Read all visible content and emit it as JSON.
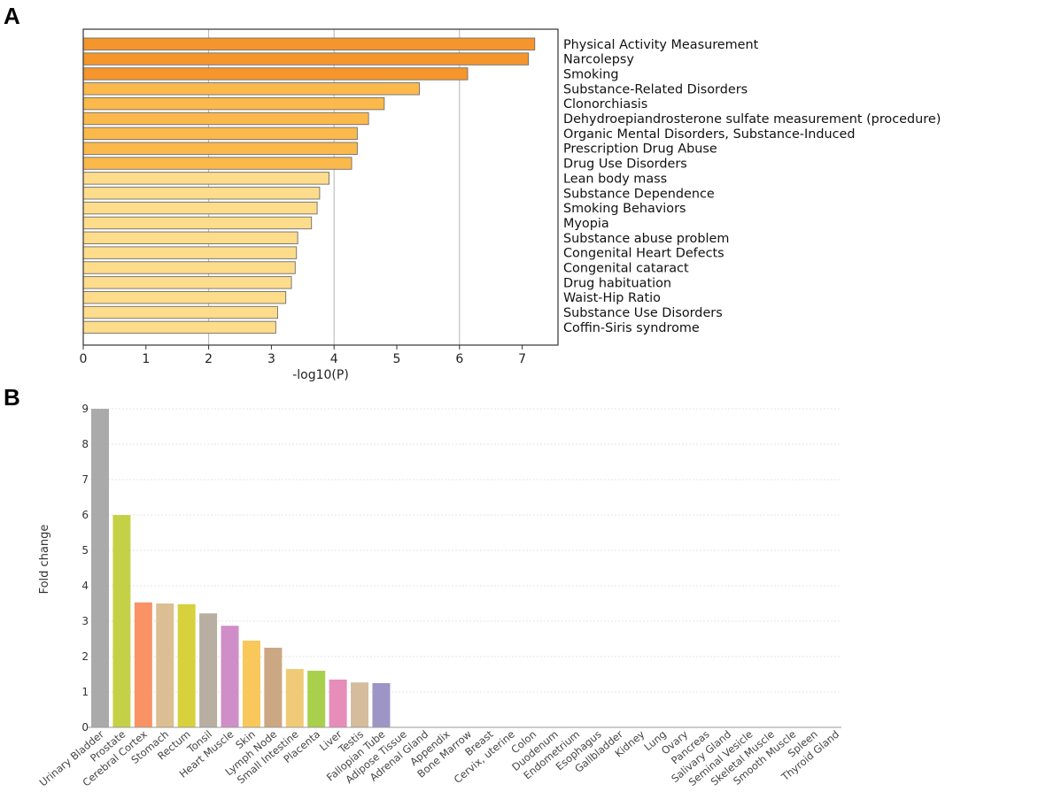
{
  "panels": {
    "a_label": "A",
    "b_label": "B"
  },
  "chart_data": [
    {
      "type": "bar",
      "orientation": "horizontal",
      "xlabel": "-log10(P)",
      "xlim": [
        0,
        7.5
      ],
      "xticks": [
        0,
        1,
        2,
        3,
        4,
        5,
        6,
        7
      ],
      "gridlines_at": [
        2,
        4,
        6
      ],
      "categories": [
        "Physical Activity Measurement",
        "Narcolepsy",
        "Smoking",
        "Substance-Related Disorders",
        "Clonorchiasis",
        "Dehydroepiandrosterone sulfate measurement (procedure)",
        "Organic Mental Disorders, Substance-Induced",
        "Prescription Drug Abuse",
        "Drug Use Disorders",
        "Lean body mass",
        "Substance Dependence",
        "Smoking Behaviors",
        "Myopia",
        "Substance abuse problem",
        "Congenital Heart Defects",
        "Congenital cataract",
        "Drug habituation",
        "Waist-Hip Ratio",
        "Substance Use Disorders",
        "Coffin-Siris syndrome"
      ],
      "values": [
        7.2,
        7.1,
        6.13,
        5.36,
        4.8,
        4.55,
        4.37,
        4.37,
        4.28,
        3.92,
        3.77,
        3.73,
        3.64,
        3.42,
        3.4,
        3.38,
        3.32,
        3.23,
        3.1,
        3.07
      ],
      "colors": [
        "#f5962c",
        "#f5962c",
        "#f5962c",
        "#fbb94c",
        "#fbb94c",
        "#fbb94c",
        "#fbb94c",
        "#fbb94c",
        "#fbb94c",
        "#fddc8c",
        "#fddc8c",
        "#fddc8c",
        "#fddc8c",
        "#fddc8c",
        "#fddc8c",
        "#fddc8c",
        "#fddc8c",
        "#fddc8c",
        "#fddc8c",
        "#fddc8c"
      ]
    },
    {
      "type": "bar",
      "orientation": "vertical",
      "ylabel": "Fold change",
      "ylim": [
        0,
        9
      ],
      "yticks": [
        0,
        1,
        2,
        3,
        4,
        5,
        6,
        7,
        8,
        9
      ],
      "categories": [
        "Urinary Bladder",
        "Prostate",
        "Cerebral Cortex",
        "Stomach",
        "Rectum",
        "Tonsil",
        "Heart Muscle",
        "Skin",
        "Lymph Node",
        "Small Intestine",
        "Placenta",
        "Liver",
        "Testis",
        "Fallopian Tube",
        "Adipose Tissue",
        "Adrenal Gland",
        "Appendix",
        "Bone Marrow",
        "Breast",
        "Cervix, uterine",
        "Colon",
        "Duodenum",
        "Endometrium",
        "Esophagus",
        "Gallbladder",
        "Kidney",
        "Lung",
        "Ovary",
        "Pancreas",
        "Salivary Gland",
        "Seminal Vesicle",
        "Skeletal Muscle",
        "Smooth Muscle",
        "Spleen",
        "Thyroid Gland"
      ],
      "values": [
        9.0,
        6.0,
        3.53,
        3.5,
        3.48,
        3.22,
        2.87,
        2.45,
        2.25,
        1.65,
        1.6,
        1.35,
        1.27,
        1.25,
        0,
        0,
        0,
        0,
        0,
        0,
        0,
        0,
        0,
        0,
        0,
        0,
        0,
        0,
        0,
        0,
        0,
        0,
        0,
        0,
        0
      ],
      "colors": [
        "#aaaaaa",
        "#c4d147",
        "#f99264",
        "#dbbe91",
        "#d6d13c",
        "#b8aea1",
        "#cf8ec7",
        "#f8c85a",
        "#cba783",
        "#f1ca77",
        "#a8d04c",
        "#e68db9",
        "#d5bc9c",
        "#9c95c6",
        "#cccccc",
        "#cccccc",
        "#cccccc",
        "#cccccc",
        "#cccccc",
        "#cccccc",
        "#cccccc",
        "#cccccc",
        "#cccccc",
        "#cccccc",
        "#cccccc",
        "#cccccc",
        "#cccccc",
        "#cccccc",
        "#cccccc",
        "#cccccc",
        "#cccccc",
        "#cccccc",
        "#cccccc",
        "#cccccc",
        "#cccccc"
      ]
    }
  ]
}
